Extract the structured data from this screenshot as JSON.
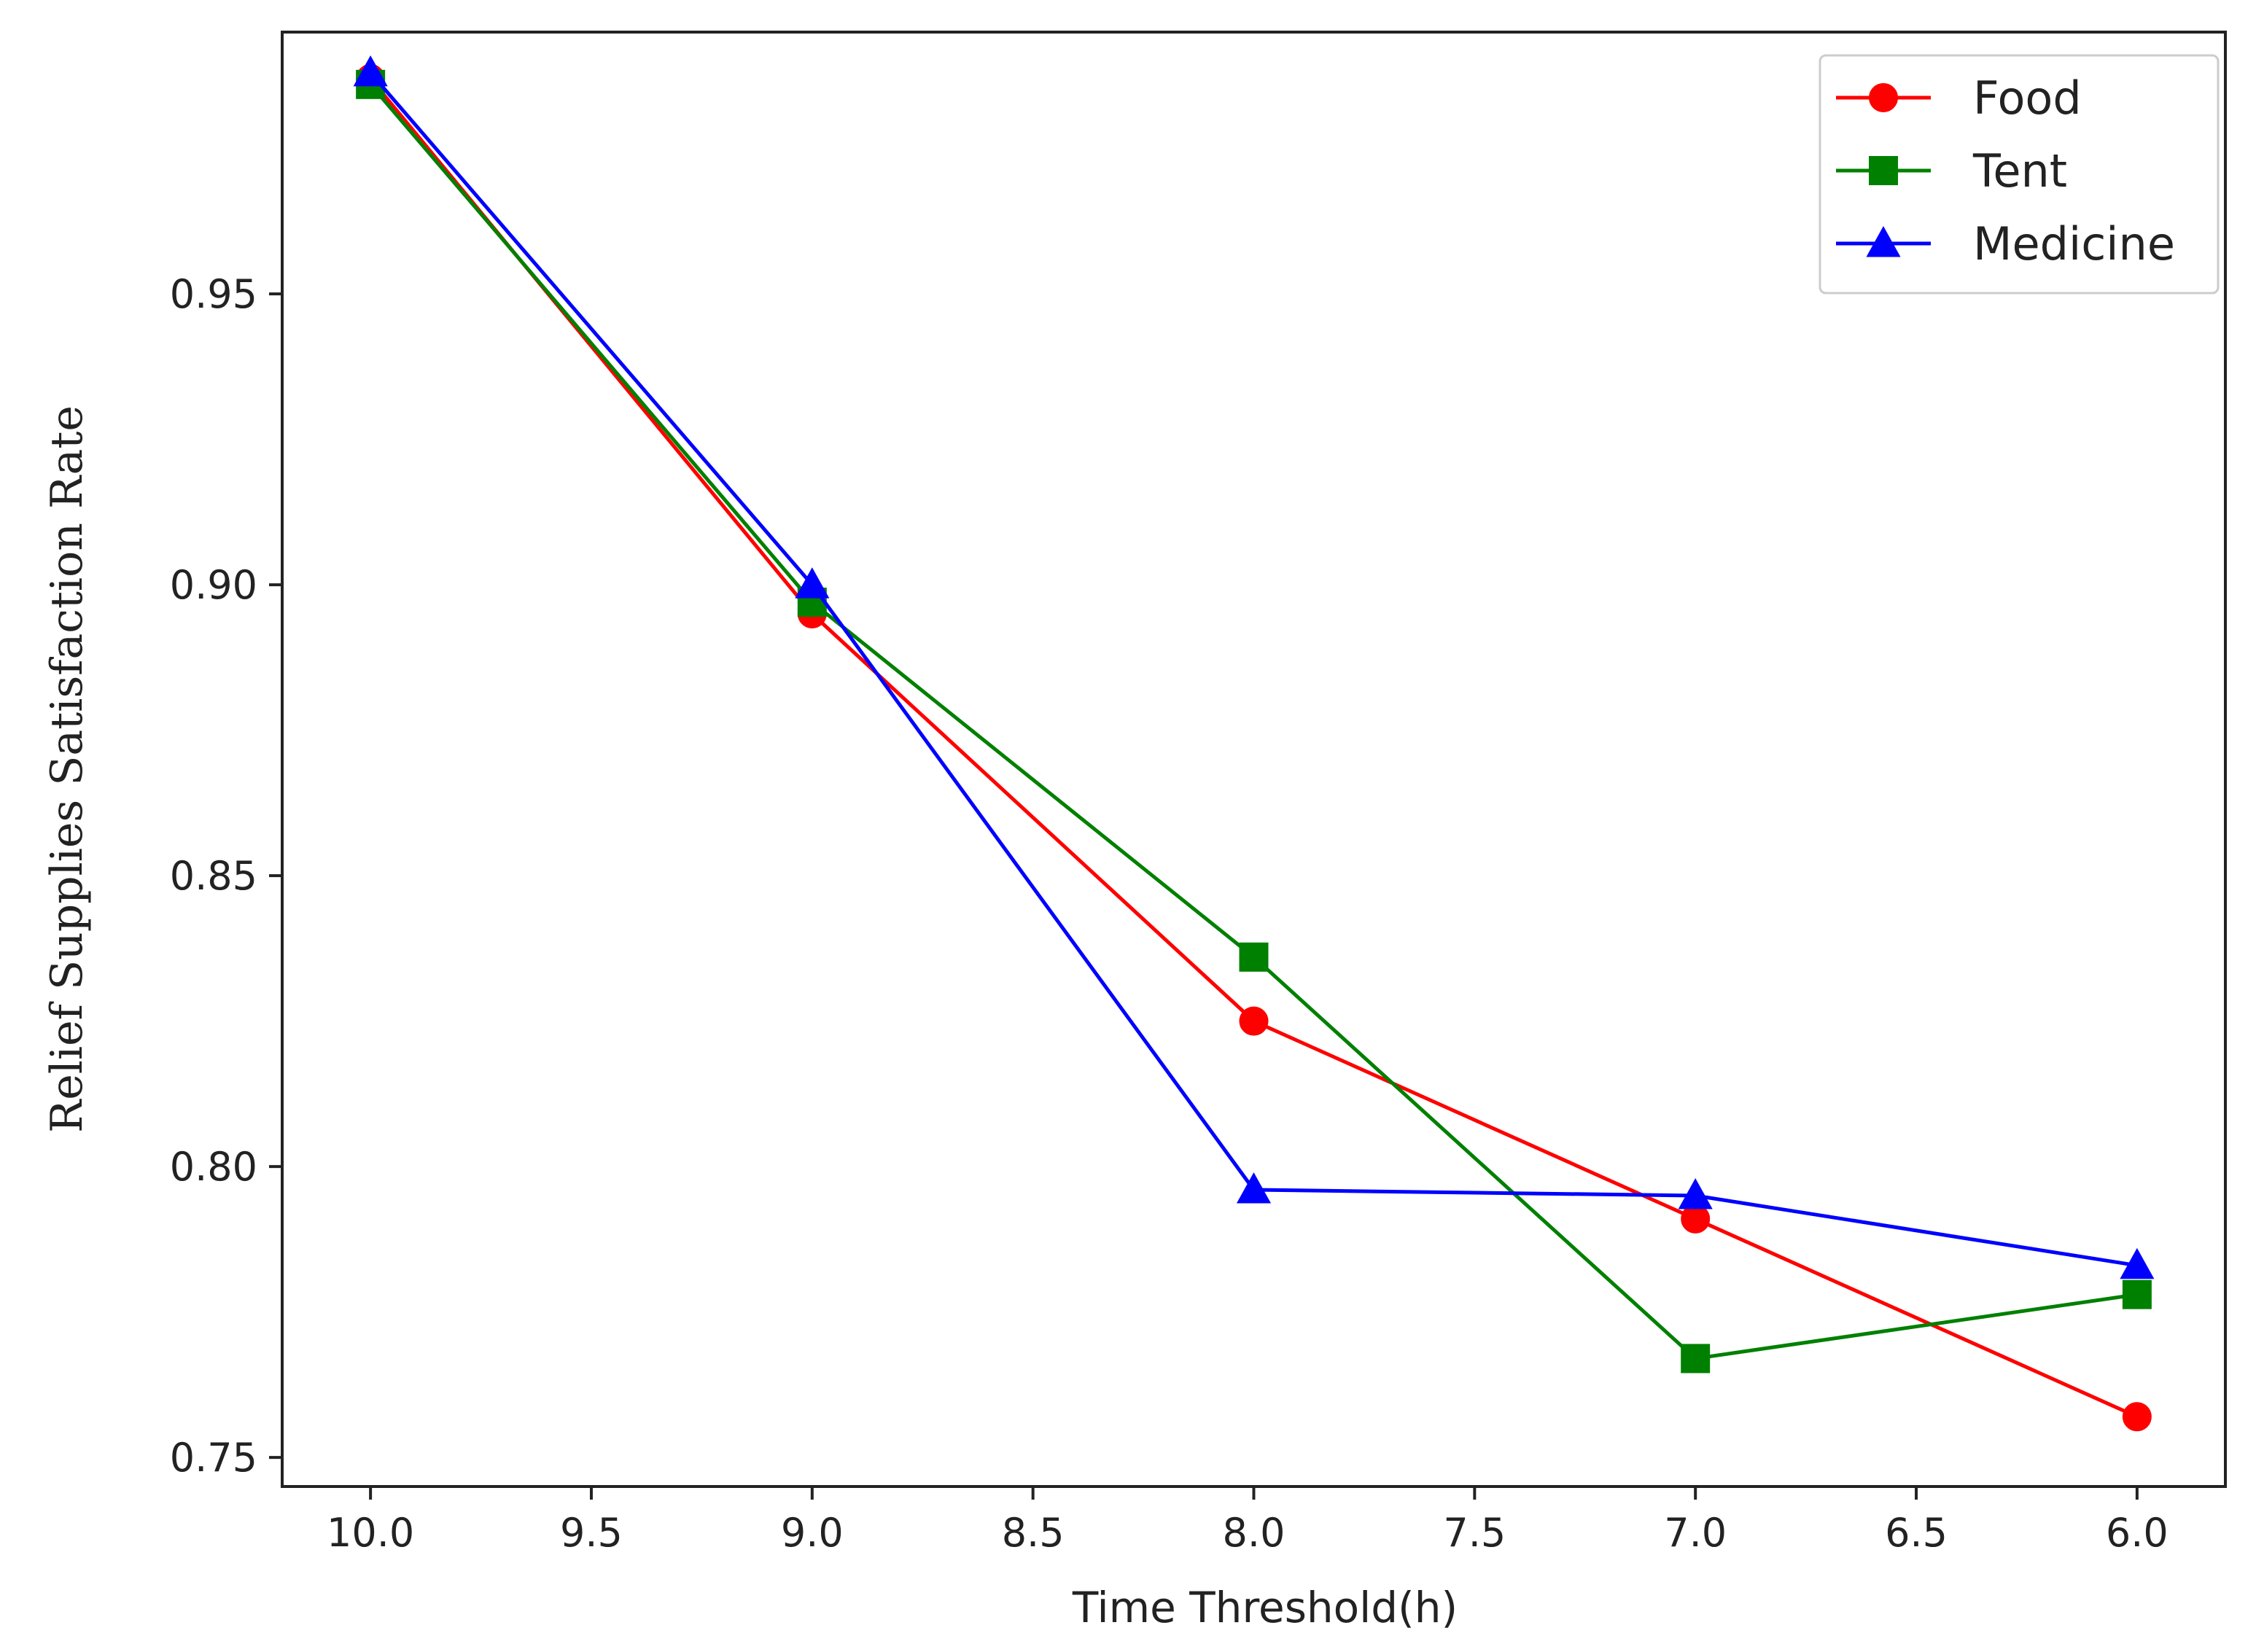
{
  "chart_data": {
    "type": "line",
    "title": "",
    "xlabel": "Time Threshold(h)",
    "ylabel": "Relief Supplies Satisfaction Rate",
    "x": [
      10.0,
      9.0,
      8.0,
      7.0,
      6.0
    ],
    "xlim": [
      10.2,
      5.8
    ],
    "ylim": [
      0.745,
      0.995
    ],
    "x_inverted": true,
    "xticks": [
      10.0,
      9.5,
      9.0,
      8.5,
      8.0,
      7.5,
      7.0,
      6.5,
      6.0
    ],
    "xtick_labels": [
      "10.0",
      "9.5",
      "9.0",
      "8.5",
      "8.0",
      "7.5",
      "7.0",
      "6.5",
      "6.0"
    ],
    "yticks": [
      0.75,
      0.8,
      0.85,
      0.9,
      0.95
    ],
    "ytick_labels": [
      "0.75",
      "0.80",
      "0.85",
      "0.90",
      "0.95"
    ],
    "grid": false,
    "legend_position": "top-right",
    "series": [
      {
        "name": "Food",
        "color": "#ff0000",
        "marker": "circle",
        "values": [
          0.987,
          0.895,
          0.825,
          0.791,
          0.757
        ]
      },
      {
        "name": "Tent",
        "color": "#008000",
        "marker": "square",
        "values": [
          0.986,
          0.897,
          0.836,
          0.767,
          0.778
        ]
      },
      {
        "name": "Medicine",
        "color": "#0000ff",
        "marker": "triangle",
        "values": [
          0.988,
          0.9,
          0.796,
          0.795,
          0.783
        ]
      }
    ]
  }
}
